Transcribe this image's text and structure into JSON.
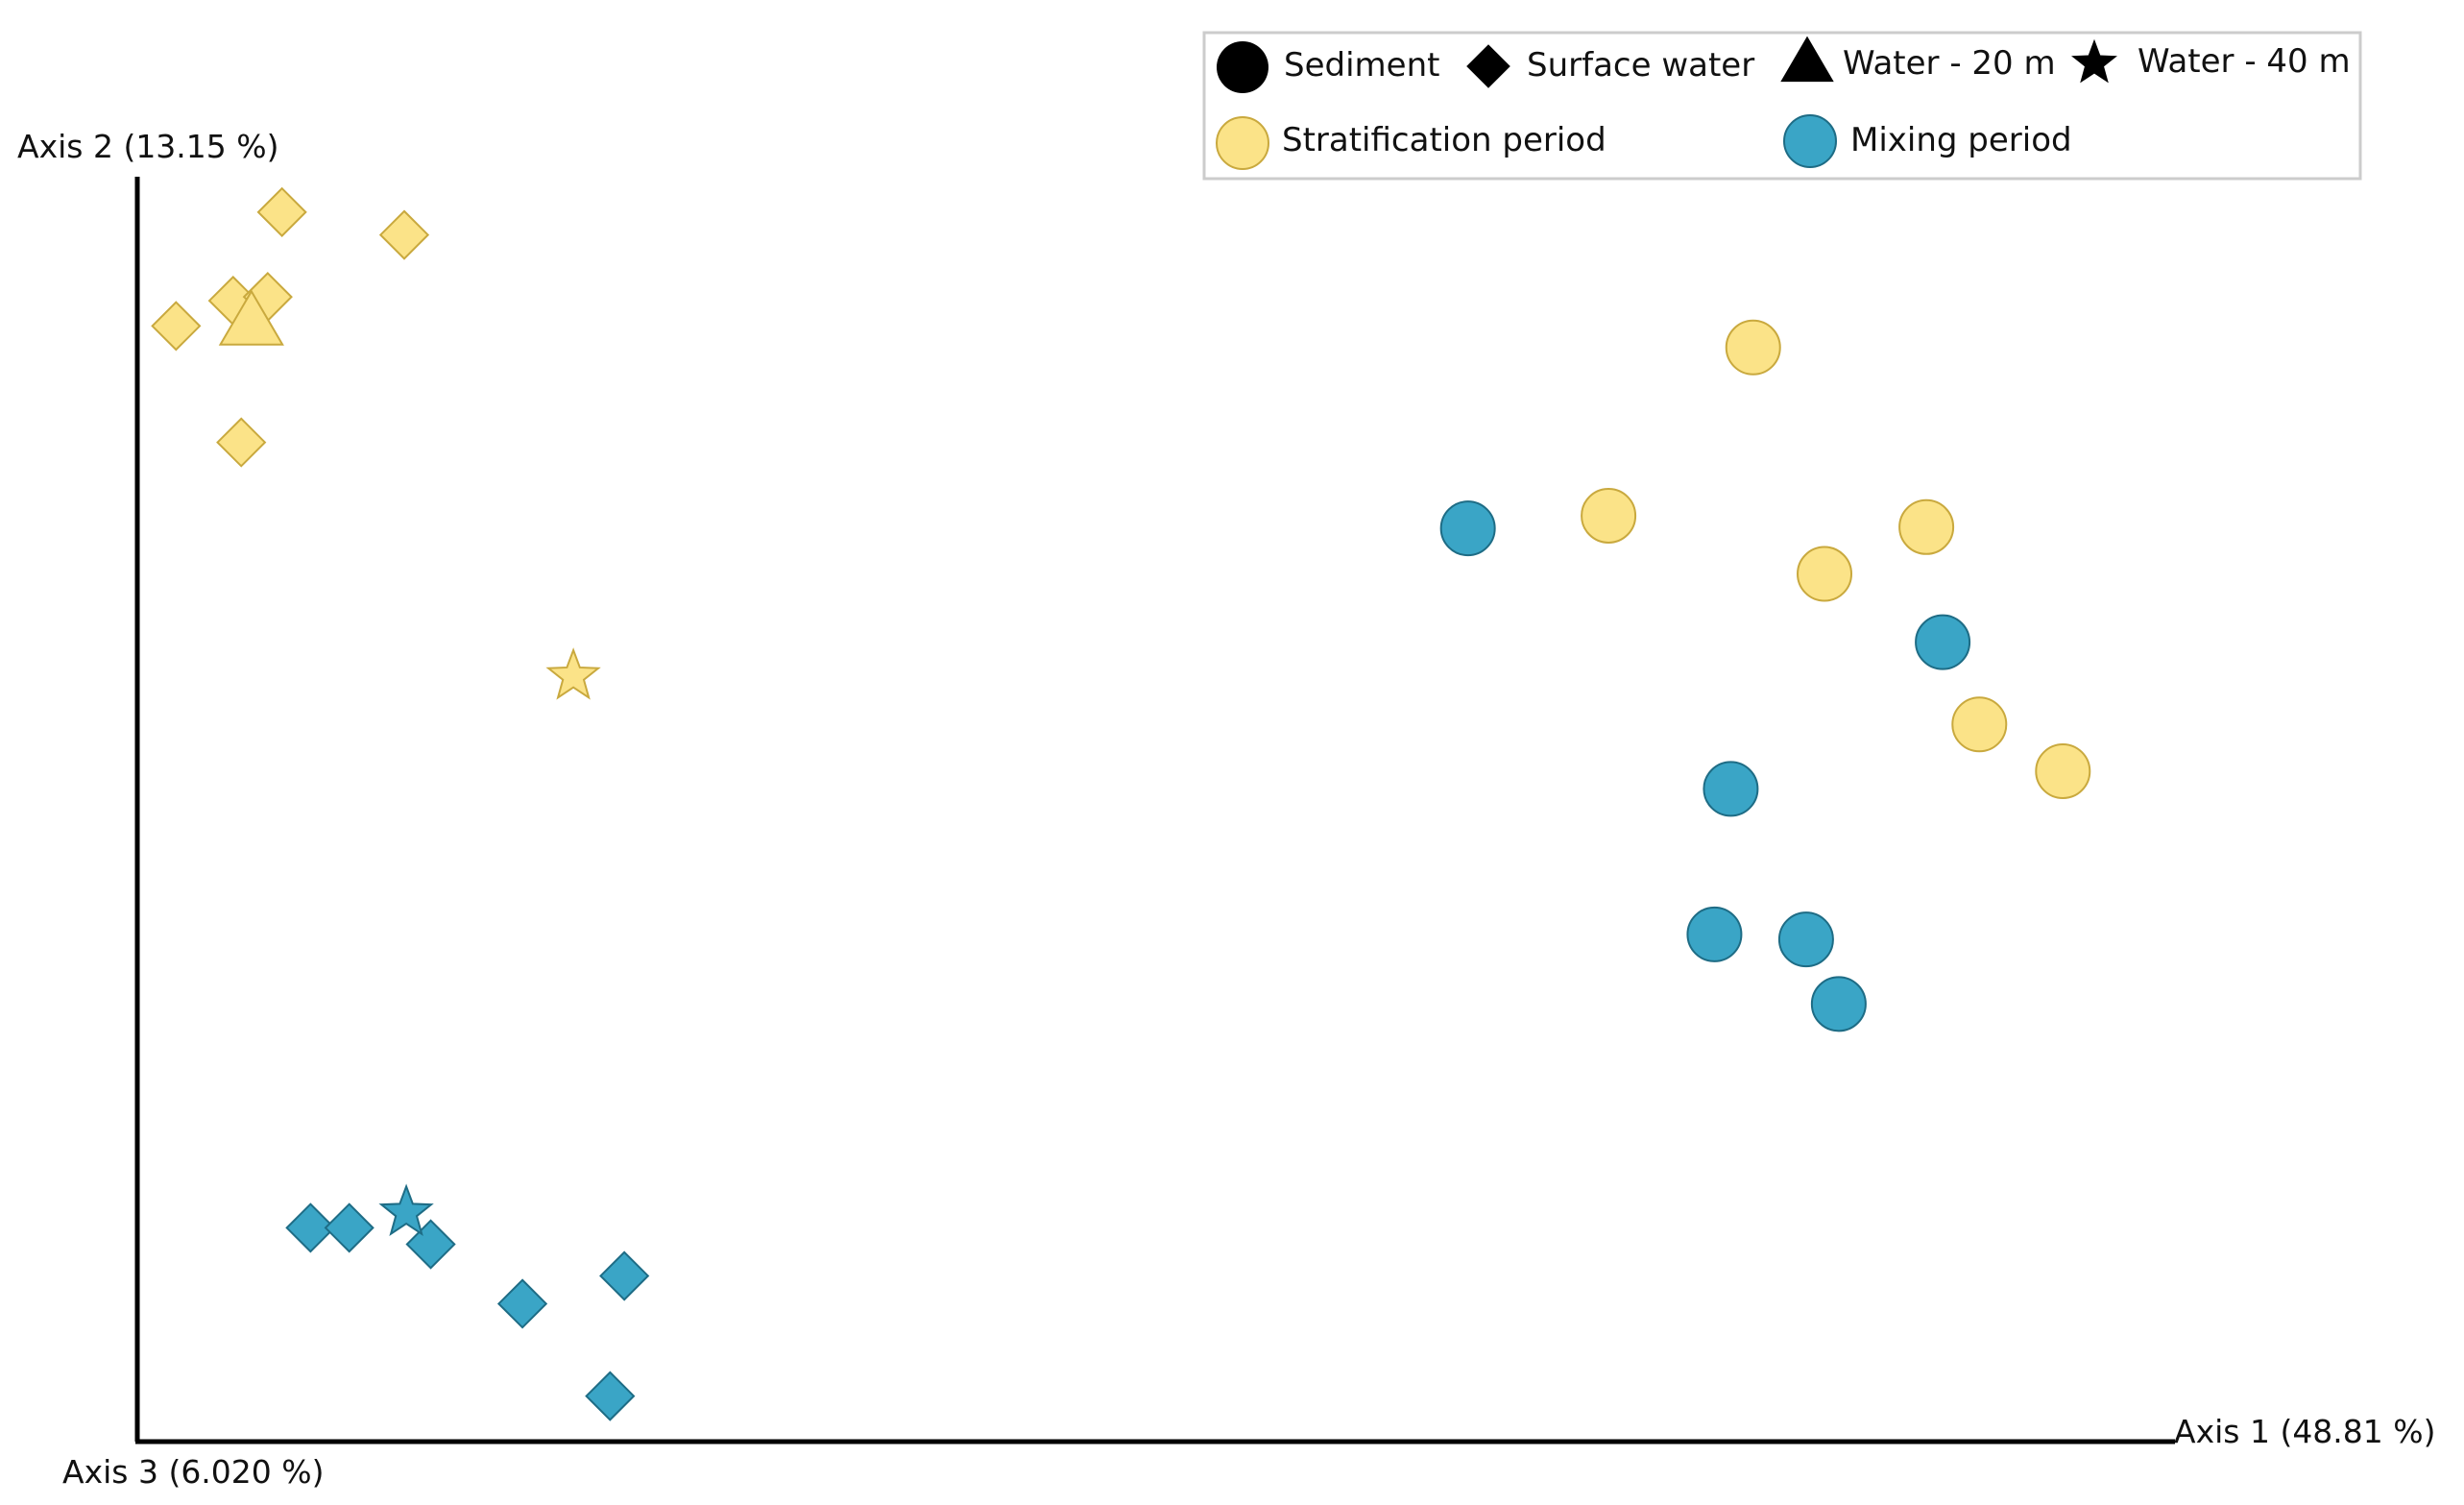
{
  "chart_data": {
    "type": "scatter",
    "title": "",
    "axes": {
      "x": {
        "label": "Axis 1 (48.81 %)",
        "range": [
          0,
          100
        ]
      },
      "y": {
        "label": "Axis 2 (13.15 %)",
        "range": [
          0,
          100
        ]
      },
      "z": {
        "label": "Axis 3 (6.020 %)"
      }
    },
    "grid": false,
    "legend": {
      "placement": "top-right",
      "shape_entries": [
        {
          "key": "sediment",
          "label": "Sediment",
          "shape": "circle"
        },
        {
          "key": "surface_water",
          "label": "Surface water",
          "shape": "diamond"
        },
        {
          "key": "water_20m",
          "label": "Water - 20 m",
          "shape": "triangle"
        },
        {
          "key": "water_40m",
          "label": "Water - 40 m",
          "shape": "star"
        }
      ],
      "color_entries": [
        {
          "key": "stratification",
          "label": "Stratification period",
          "color": "#FBE388"
        },
        {
          "key": "mixing",
          "label": "Mixing period",
          "color": "#3AA5C6"
        }
      ]
    },
    "colors": {
      "stratification": "#FBE388",
      "stratification_edge": "#C9A93E",
      "mixing": "#3AA5C6",
      "mixing_edge": "#1E6C85",
      "axis": "#000000",
      "legend_border": "#CCCCCC"
    },
    "series": [
      {
        "name": "Stratification period",
        "color_key": "stratification",
        "shape": "diamond",
        "points": [
          [
            7.1,
            97.2
          ],
          [
            13.1,
            95.4
          ],
          [
            1.9,
            88.2
          ],
          [
            4.7,
            90.2
          ],
          [
            6.4,
            90.5
          ],
          [
            5.1,
            79.0
          ]
        ]
      },
      {
        "name": "Stratification period",
        "color_key": "stratification",
        "shape": "triangle",
        "points": [
          [
            5.6,
            88.6
          ]
        ]
      },
      {
        "name": "Stratification period",
        "color_key": "stratification",
        "shape": "star",
        "points": [
          [
            21.4,
            60.5
          ]
        ]
      },
      {
        "name": "Stratification period",
        "color_key": "stratification",
        "shape": "circle",
        "points": [
          [
            79.3,
            86.5
          ],
          [
            72.2,
            73.2
          ],
          [
            82.8,
            68.6
          ],
          [
            87.8,
            72.3
          ],
          [
            90.4,
            56.7
          ],
          [
            94.5,
            53.0
          ]
        ]
      },
      {
        "name": "Mixing period",
        "color_key": "mixing",
        "shape": "circle",
        "points": [
          [
            65.3,
            72.2
          ],
          [
            88.6,
            63.2
          ],
          [
            78.2,
            51.6
          ],
          [
            77.4,
            40.1
          ],
          [
            81.9,
            39.7
          ],
          [
            83.5,
            34.6
          ]
        ]
      },
      {
        "name": "Mixing period",
        "color_key": "mixing",
        "shape": "diamond",
        "points": [
          [
            8.5,
            16.9
          ],
          [
            10.4,
            16.9
          ],
          [
            14.4,
            15.6
          ],
          [
            18.9,
            10.9
          ],
          [
            23.9,
            13.1
          ],
          [
            23.2,
            3.6
          ]
        ]
      },
      {
        "name": "Mixing period",
        "color_key": "mixing",
        "shape": "star",
        "points": [
          [
            13.2,
            18.1
          ]
        ]
      }
    ]
  }
}
